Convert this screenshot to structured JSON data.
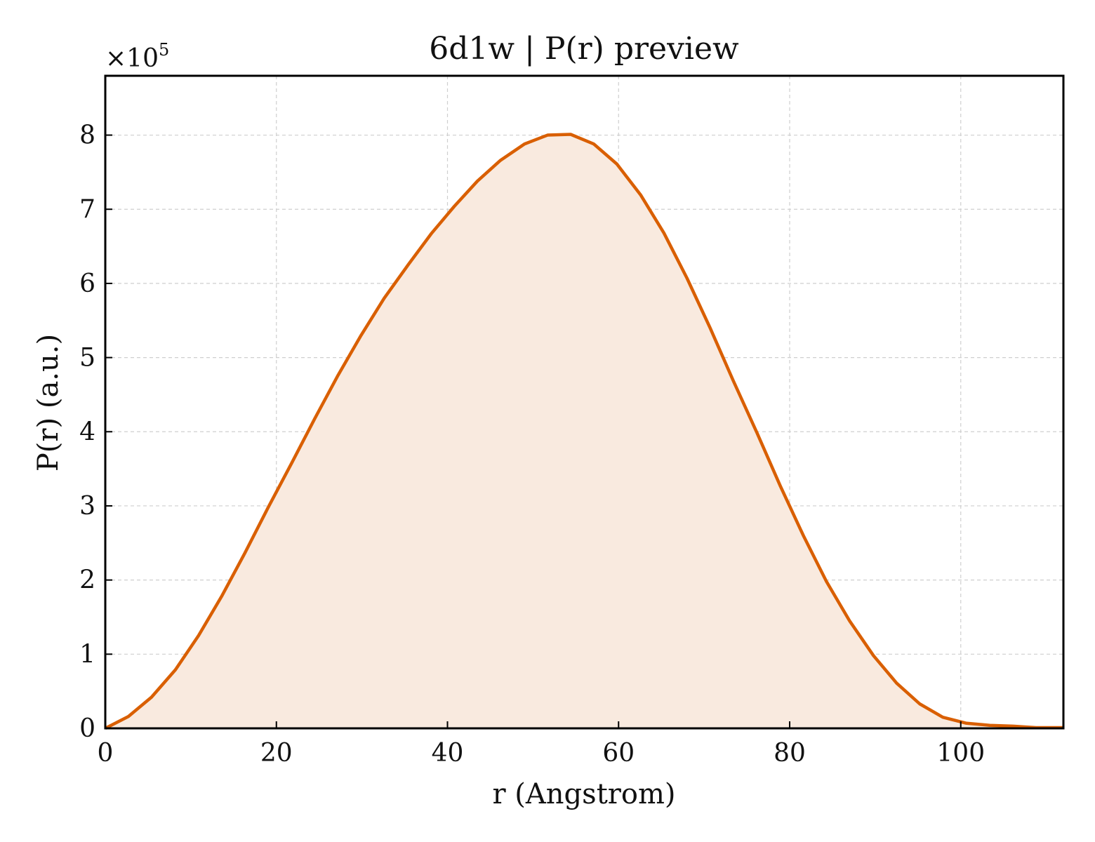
{
  "chart_data": {
    "type": "area",
    "title": "6d1w | P(r) preview",
    "xlabel": "r (Angstrom)",
    "ylabel": "P(r) (a.u.)",
    "y_multiplier_label": "×10",
    "y_multiplier_exponent": "5",
    "xlim": [
      0,
      112
    ],
    "ylim": [
      0,
      8.8
    ],
    "x_ticks": [
      0,
      20,
      40,
      60,
      80,
      100
    ],
    "y_ticks": [
      0,
      1,
      2,
      3,
      4,
      5,
      6,
      7,
      8
    ],
    "grid": true,
    "line_color": "#d95f02",
    "fill_color": "#f9eadf",
    "series": [
      {
        "x": [
          0,
          2.7,
          5.4,
          8.2,
          10.9,
          13.6,
          16.3,
          19.0,
          21.8,
          24.5,
          27.2,
          29.9,
          32.6,
          35.4,
          38.1,
          40.8,
          43.5,
          46.2,
          49.0,
          51.7,
          54.4,
          57.1,
          59.8,
          62.6,
          65.3,
          68.0,
          70.7,
          73.4,
          76.2,
          78.9,
          81.6,
          84.3,
          87.0,
          89.8,
          92.5,
          95.2,
          97.9,
          100.6,
          103.4,
          106.1,
          108.8,
          112.0
        ],
        "y": [
          0.0,
          0.16,
          0.42,
          0.79,
          1.25,
          1.78,
          2.36,
          2.97,
          3.58,
          4.18,
          4.76,
          5.3,
          5.8,
          6.25,
          6.67,
          7.04,
          7.38,
          7.66,
          7.88,
          8.0,
          8.01,
          7.88,
          7.61,
          7.19,
          6.68,
          6.07,
          5.4,
          4.69,
          3.98,
          3.27,
          2.6,
          1.98,
          1.45,
          0.98,
          0.61,
          0.33,
          0.15,
          0.07,
          0.04,
          0.03,
          0.01,
          0.01
        ]
      }
    ]
  }
}
